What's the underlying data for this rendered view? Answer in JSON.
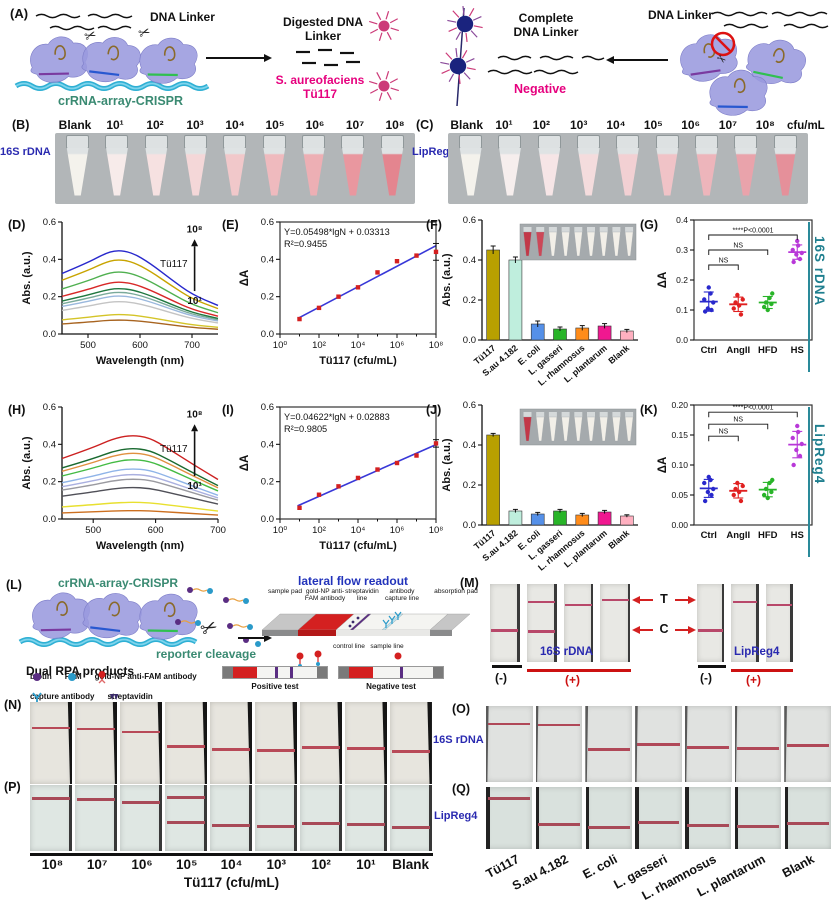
{
  "icons": {
    "scissors": "✂"
  },
  "colors": {
    "magenta_text": "#e6007e",
    "green_text": "#3a8a72",
    "blue_label": "#2a2ab0",
    "teal_side": "#1f7f8f",
    "lfa_title_blue": "#2233bb",
    "red_arrow": "#d42020"
  },
  "panelA": {
    "label": "(A)",
    "dna_linker_left": "DNA Linker",
    "crispr_label": "crRNA-array-CRISPR",
    "digested_label": "Digested DNA Linker",
    "target_label": "S. aureofaciens Tü117",
    "complete_label": "Complete DNA Linker",
    "negative_label": "Negative",
    "dna_linker_right": "DNA Linker"
  },
  "panelB": {
    "label": "(B)",
    "row_label": "16S rDNA",
    "tube_labels": [
      "Blank",
      "10¹",
      "10²",
      "10³",
      "10⁴",
      "10⁵",
      "10⁶",
      "10⁷",
      "10⁸"
    ],
    "tube_colors": [
      "#f4f2ec",
      "#f7ebea",
      "#f6e1e1",
      "#f4d7d8",
      "#f1c8ca",
      "#efbabe",
      "#edafb4",
      "#e9979f",
      "#e4858f"
    ]
  },
  "panelC": {
    "label": "(C)",
    "row_label": "LipReg4",
    "unit": "cfu/mL",
    "tube_labels": [
      "Blank",
      "10¹",
      "10²",
      "10³",
      "10⁴",
      "10⁵",
      "10⁶",
      "10⁷",
      "10⁸"
    ],
    "tube_colors": [
      "#f4f2ec",
      "#f6eeed",
      "#f6e5e6",
      "#f4dcdd",
      "#f2d0d3",
      "#f0c3c7",
      "#edb5bb",
      "#e9a3ab",
      "#e5909a"
    ]
  },
  "side_labels": {
    "row1": "16S rDNA",
    "row2": "LipReg4"
  },
  "chart_data": [
    {
      "id": "D",
      "label": "(D)",
      "type": "line",
      "ylabel": "Abs. (a.u.)",
      "xlabel": "Wavelength (nm)",
      "xlim": [
        450,
        750
      ],
      "xticks": [
        500,
        600,
        700
      ],
      "ylim": [
        0,
        0.6
      ],
      "yticks": [
        0,
        0.2,
        0.4,
        0.6
      ],
      "ytick_labels": [
        "0.0",
        "0.2",
        "0.4",
        "0.6"
      ],
      "peak_wavelength": 555,
      "annotation": {
        "top": "10⁸",
        "label": "Tü117",
        "bottom": "10¹"
      },
      "series": [
        {
          "peak": 0.45,
          "color": "#2828cc"
        },
        {
          "peak": 0.4,
          "color": "#c8a400"
        },
        {
          "peak": 0.335,
          "color": "#50b050"
        },
        {
          "peak": 0.28,
          "color": "#d82828"
        },
        {
          "peak": 0.245,
          "color": "#207840"
        },
        {
          "peak": 0.225,
          "color": "#7aaa9a"
        },
        {
          "peak": 0.205,
          "color": "#9ab8dd"
        },
        {
          "peak": 0.175,
          "color": "#c4c4c4"
        },
        {
          "peak": 0.105,
          "color": "#d4c428"
        },
        {
          "peak": 0.075,
          "color": "#a86420"
        }
      ]
    },
    {
      "id": "E",
      "label": "(E)",
      "type": "scatter",
      "equation": "Y=0.05498*lgN + 0.03313",
      "r_squared": "R²=0.9455",
      "ylabel": "ΔA",
      "xlabel": "Tü117 (cfu/mL)",
      "ylim": [
        0,
        0.6
      ],
      "yticks": [
        0,
        0.2,
        0.4,
        0.6
      ],
      "ytick_labels": [
        "0.0",
        "0.2",
        "0.4",
        "0.6"
      ],
      "xtick_labels": [
        "10⁰",
        "10²",
        "10⁴",
        "10⁶",
        "10⁸"
      ],
      "x_exponents": [
        1,
        2,
        3,
        4,
        5,
        6,
        7,
        8
      ],
      "y": [
        0.08,
        0.14,
        0.2,
        0.25,
        0.33,
        0.39,
        0.42,
        0.44
      ],
      "last_err": 0.045,
      "fit": {
        "slope": 0.05498,
        "intercept": 0.03313
      },
      "point_color": "#d42020",
      "line_color": "#3838d8"
    },
    {
      "id": "F",
      "label": "(F)",
      "type": "bar",
      "ylabel": "Abs. (a.u.)",
      "ylim": [
        0,
        0.6
      ],
      "yticks": [
        0,
        0.2,
        0.4,
        0.6
      ],
      "ytick_labels": [
        "0.0",
        "0.2",
        "0.4",
        "0.6"
      ],
      "categories": [
        "Tü117",
        "S.au 4.182",
        "E. coli",
        "L. gasseri",
        "L. rhamnosus",
        "L. plantarum",
        "Blank"
      ],
      "values": [
        0.45,
        0.4,
        0.08,
        0.055,
        0.06,
        0.07,
        0.045
      ],
      "errors": [
        0.02,
        0.015,
        0.015,
        0.01,
        0.012,
        0.012,
        0.008
      ],
      "bar_colors": [
        "#b8a000",
        "#bfeedd",
        "#5590e8",
        "#28b428",
        "#ff8c1a",
        "#f01890",
        "#ffb0c0"
      ],
      "inset_tube_colors": [
        "#c23848",
        "#cc4858",
        "#f2efe8",
        "#f2efe8",
        "#f2efe8",
        "#f2efe8",
        "#f2efe8",
        "#f2efe8",
        "#f2efe8"
      ]
    },
    {
      "id": "G",
      "label": "(G)",
      "type": "dotplot",
      "ylabel": "ΔA",
      "ylim": [
        0,
        0.4
      ],
      "yticks": [
        0,
        0.1,
        0.2,
        0.3,
        0.4
      ],
      "ytick_labels": [
        "0.0",
        "0.1",
        "0.2",
        "0.3",
        "0.4"
      ],
      "categories": [
        "Ctrl",
        "AngII",
        "HFD",
        "HS"
      ],
      "groups": [
        {
          "name": "Ctrl",
          "color": "#2828cc",
          "points": [
            0.095,
            0.1,
            0.105,
            0.125,
            0.135,
            0.155,
            0.175
          ],
          "mean": 0.128,
          "sd": 0.032
        },
        {
          "name": "AngII",
          "color": "#e02020",
          "points": [
            0.085,
            0.105,
            0.115,
            0.125,
            0.135,
            0.15
          ],
          "mean": 0.119,
          "sd": 0.024
        },
        {
          "name": "HFD",
          "color": "#28b428",
          "points": [
            0.1,
            0.11,
            0.12,
            0.125,
            0.14,
            0.155
          ],
          "mean": 0.125,
          "sd": 0.02
        },
        {
          "name": "HS",
          "color": "#b838d8",
          "points": [
            0.26,
            0.27,
            0.285,
            0.29,
            0.3,
            0.315,
            0.33
          ],
          "mean": 0.293,
          "sd": 0.024
        }
      ],
      "significance": [
        {
          "from": 0,
          "to": 3,
          "label": "****P<0.0001",
          "y": 0.35
        },
        {
          "from": 0,
          "to": 2,
          "label": "NS",
          "y": 0.3
        },
        {
          "from": 0,
          "to": 1,
          "label": "NS",
          "y": 0.25
        }
      ]
    },
    {
      "id": "H",
      "label": "(H)",
      "type": "line",
      "ylabel": "Abs. (a.u.)",
      "xlabel": "Wavelength (nm)",
      "xlim": [
        450,
        700
      ],
      "xticks": [
        500,
        600,
        700
      ],
      "ylim": [
        0,
        0.6
      ],
      "yticks": [
        0,
        0.2,
        0.4,
        0.6
      ],
      "ytick_labels": [
        "0.0",
        "0.2",
        "0.4",
        "0.6"
      ],
      "peak_wavelength": 560,
      "annotation": {
        "top": "10⁸",
        "label": "Tü117",
        "bottom": "10¹"
      },
      "series": [
        {
          "peak": 0.45,
          "color": "#cc2020"
        },
        {
          "peak": 0.38,
          "color": "#1a6a30"
        },
        {
          "peak": 0.355,
          "color": "#e09040"
        },
        {
          "peak": 0.32,
          "color": "#44bb44"
        },
        {
          "peak": 0.27,
          "color": "#8fb4e8"
        },
        {
          "peak": 0.24,
          "color": "#aab0e0"
        },
        {
          "peak": 0.215,
          "color": "#9a9aa0"
        },
        {
          "peak": 0.17,
          "color": "#505058"
        },
        {
          "peak": 0.09,
          "color": "#e8e030"
        },
        {
          "peak": 0.045,
          "color": "#cc7020"
        }
      ]
    },
    {
      "id": "I",
      "label": "(I)",
      "type": "scatter",
      "equation": "Y=0.04622*lgN + 0.02883",
      "r_squared": "R²=0.9805",
      "ylabel": "ΔA",
      "xlabel": "Tü117 (cfu/mL)",
      "ylim": [
        0,
        0.6
      ],
      "yticks": [
        0,
        0.2,
        0.4,
        0.6
      ],
      "ytick_labels": [
        "0.0",
        "0.2",
        "0.4",
        "0.6"
      ],
      "xtick_labels": [
        "10⁰",
        "10²",
        "10⁴",
        "10⁶",
        "10⁸"
      ],
      "x_exponents": [
        1,
        2,
        3,
        4,
        5,
        6,
        7,
        8
      ],
      "y": [
        0.06,
        0.13,
        0.175,
        0.22,
        0.265,
        0.3,
        0.34,
        0.405
      ],
      "last_err": 0.02,
      "fit": {
        "slope": 0.04622,
        "intercept": 0.02883
      },
      "point_color": "#d42020",
      "line_color": "#3838d8"
    },
    {
      "id": "J",
      "label": "(J)",
      "type": "bar",
      "ylabel": "Abs. (a.u.)",
      "ylim": [
        0,
        0.6
      ],
      "yticks": [
        0,
        0.2,
        0.4,
        0.6
      ],
      "ytick_labels": [
        "0.0",
        "0.2",
        "0.4",
        "0.6"
      ],
      "categories": [
        "Tü117",
        "S.au 4.182",
        "E. coli",
        "L. gasseri",
        "L. rhamnosus",
        "L. plantarum",
        "Blank"
      ],
      "values": [
        0.45,
        0.07,
        0.055,
        0.07,
        0.05,
        0.065,
        0.045
      ],
      "errors": [
        0.008,
        0.008,
        0.008,
        0.008,
        0.008,
        0.008,
        0.006
      ],
      "bar_colors": [
        "#b8a000",
        "#bfeedd",
        "#5590e8",
        "#28b428",
        "#ff8c1a",
        "#f01890",
        "#ffb0c0"
      ],
      "inset_tube_colors": [
        "#c23848",
        "#f2efe8",
        "#f2efe8",
        "#f2efe8",
        "#f2efe8",
        "#f2efe8",
        "#f2efe8",
        "#f2efe8",
        "#f2efe8"
      ]
    },
    {
      "id": "K",
      "label": "(K)",
      "type": "dotplot",
      "ylabel": "ΔA",
      "ylim": [
        0,
        0.2
      ],
      "yticks": [
        0,
        0.05,
        0.1,
        0.15,
        0.2
      ],
      "ytick_labels": [
        "0.00",
        "0.05",
        "0.10",
        "0.15",
        "0.20"
      ],
      "categories": [
        "Ctrl",
        "AngII",
        "HFD",
        "HS"
      ],
      "groups": [
        {
          "name": "Ctrl",
          "color": "#2828cc",
          "points": [
            0.04,
            0.05,
            0.055,
            0.06,
            0.07,
            0.075,
            0.08
          ],
          "mean": 0.061,
          "sd": 0.015
        },
        {
          "name": "AngII",
          "color": "#e02020",
          "points": [
            0.04,
            0.05,
            0.055,
            0.06,
            0.065,
            0.07
          ],
          "mean": 0.057,
          "sd": 0.012
        },
        {
          "name": "HFD",
          "color": "#28b428",
          "points": [
            0.045,
            0.05,
            0.055,
            0.06,
            0.07,
            0.075
          ],
          "mean": 0.059,
          "sd": 0.012
        },
        {
          "name": "HS",
          "color": "#b838d8",
          "points": [
            0.1,
            0.115,
            0.125,
            0.135,
            0.145,
            0.155,
            0.165
          ],
          "mean": 0.134,
          "sd": 0.022
        }
      ],
      "significance": [
        {
          "from": 0,
          "to": 3,
          "label": "****P<0.0001",
          "y": 0.188
        },
        {
          "from": 0,
          "to": 2,
          "label": "NS",
          "y": 0.168
        },
        {
          "from": 0,
          "to": 1,
          "label": "NS",
          "y": 0.148
        }
      ]
    }
  ],
  "panelL": {
    "label": "(L)",
    "crispr_title": "crRNA-array-CRISPR",
    "dual_rpa_label": "Dual RPA products",
    "reporter_cleavage_label": "reporter cleavage",
    "lfa_title": "lateral flow readout",
    "pad_labels": [
      "sample pad",
      "gold-NP anti-FAM antibody",
      "streptavidin line",
      "antibody capture line",
      "absorption pad"
    ],
    "line_labels": [
      "control line",
      "sample line"
    ],
    "legend": [
      {
        "icon": "biotin-icon",
        "label": "biotin",
        "color": "#5a2d82"
      },
      {
        "icon": "fam-icon",
        "label": "FAM",
        "color": "#2a9ac9"
      },
      {
        "icon": "gold-np-antibody-icon",
        "label": "gold-NP anti-FAM antibody",
        "color": "#d42020"
      },
      {
        "icon": "capture-antibody-icon",
        "label": "capture antibody",
        "color": "#2a9ac9"
      },
      {
        "icon": "streptavidin-icon",
        "label": "streptavidin",
        "color": "#3a2a6a"
      }
    ],
    "positive_label": "Positive test",
    "negative_label": "Negative test"
  },
  "panelM": {
    "label": "(M)",
    "t_label": "T",
    "c_label": "C",
    "group1": {
      "name": "16S rDNA",
      "neg": "(-)",
      "pos": "(+)",
      "strips": [
        "C",
        "TC",
        "T",
        "T"
      ]
    },
    "group2": {
      "name": "LipReg4",
      "neg": "(-)",
      "pos": "(+)",
      "strips": [
        "C",
        "T",
        "T"
      ]
    }
  },
  "panelN": {
    "label": "(N)",
    "side_label": "16S rDNA",
    "lines": [
      "T",
      "T",
      "T",
      "C",
      "C",
      "C",
      "C",
      "C",
      "C"
    ]
  },
  "panelO": {
    "label": "(O)",
    "lines": [
      "T",
      "T",
      "C",
      "C",
      "C",
      "C",
      "C"
    ]
  },
  "panelP": {
    "label": "(P)",
    "side_label": "LipReg4",
    "lines": [
      "T",
      "T",
      "T",
      "TC",
      "C",
      "C",
      "C",
      "C",
      "C"
    ],
    "axis_labels": [
      "10⁸",
      "10⁷",
      "10⁶",
      "10⁵",
      "10⁴",
      "10³",
      "10²",
      "10¹",
      "Blank"
    ],
    "axis_title": "Tü117 (cfu/mL)"
  },
  "panelQ": {
    "label": "(Q)",
    "lines": [
      "T",
      "C",
      "C",
      "C",
      "C",
      "C",
      "C"
    ],
    "axis_labels": [
      "Tü117",
      "S.au 4.182",
      "E. coli",
      "L. gasseri",
      "L. rhamnosus",
      "L. plantarum",
      "Blank"
    ]
  }
}
